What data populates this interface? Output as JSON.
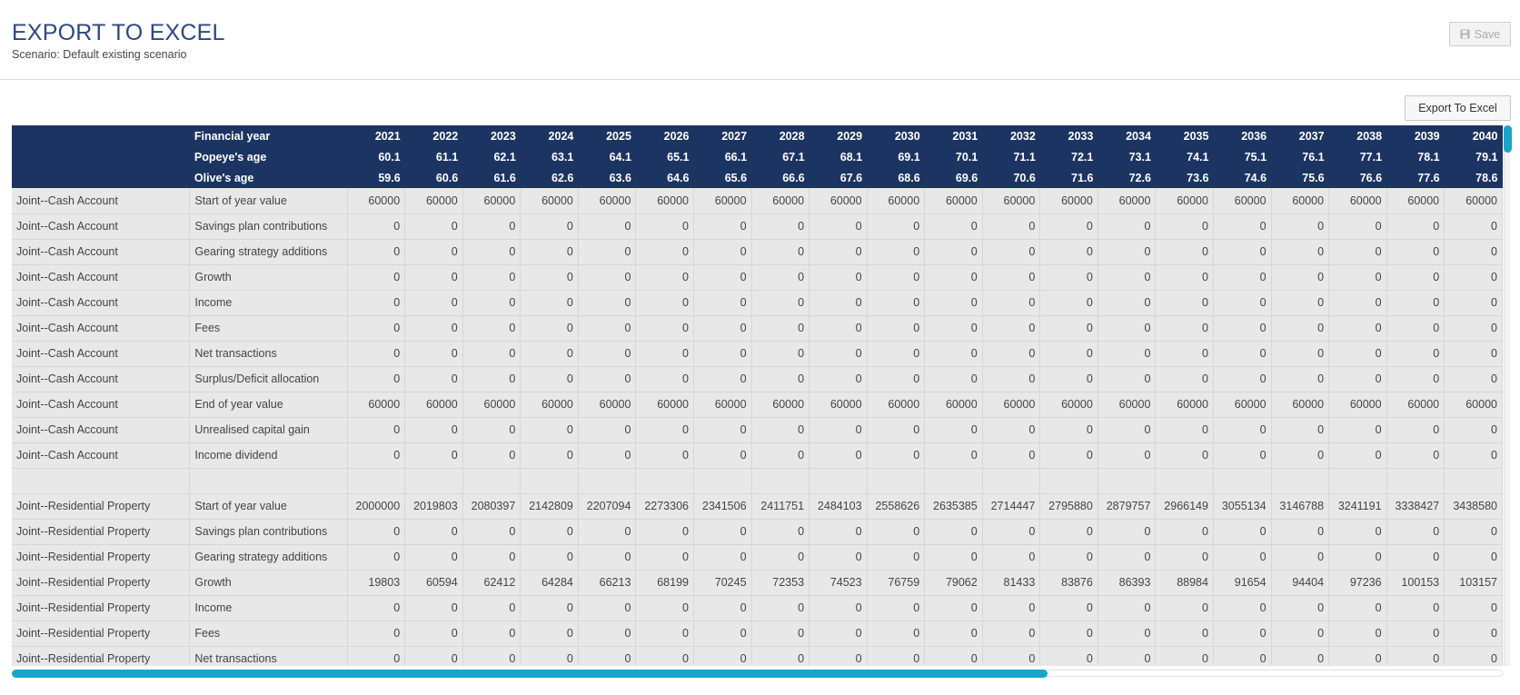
{
  "header": {
    "title": "EXPORT TO EXCEL",
    "scenario": "Scenario: Default existing scenario",
    "save_label": "Save",
    "save_icon": "floppy-disk-icon"
  },
  "toolbar": {
    "export_label": "Export To Excel"
  },
  "colors": {
    "header_bg": "#1c3461",
    "accent": "#1ba4c8",
    "title": "#2a4a7f",
    "cell_bg": "#e8e8e8"
  },
  "table": {
    "header_rows": [
      {
        "label": "Financial year",
        "values": [
          "2021",
          "2022",
          "2023",
          "2024",
          "2025",
          "2026",
          "2027",
          "2028",
          "2029",
          "2030",
          "2031",
          "2032",
          "2033",
          "2034",
          "2035",
          "2036",
          "2037",
          "2038",
          "2039",
          "2040"
        ]
      },
      {
        "label": "Popeye's age",
        "values": [
          "60.1",
          "61.1",
          "62.1",
          "63.1",
          "64.1",
          "65.1",
          "66.1",
          "67.1",
          "68.1",
          "69.1",
          "70.1",
          "71.1",
          "72.1",
          "73.1",
          "74.1",
          "75.1",
          "76.1",
          "77.1",
          "78.1",
          "79.1"
        ]
      },
      {
        "label": "Olive's age",
        "values": [
          "59.6",
          "60.6",
          "61.6",
          "62.6",
          "63.6",
          "64.6",
          "65.6",
          "66.6",
          "67.6",
          "68.6",
          "69.6",
          "70.6",
          "71.6",
          "72.6",
          "73.6",
          "74.6",
          "75.6",
          "76.6",
          "77.6",
          "78.6"
        ]
      }
    ],
    "rows": [
      {
        "account": "Joint--Cash Account",
        "item": "Start of year value",
        "values": [
          "60000",
          "60000",
          "60000",
          "60000",
          "60000",
          "60000",
          "60000",
          "60000",
          "60000",
          "60000",
          "60000",
          "60000",
          "60000",
          "60000",
          "60000",
          "60000",
          "60000",
          "60000",
          "60000",
          "60000"
        ]
      },
      {
        "account": "Joint--Cash Account",
        "item": "Savings plan contributions",
        "values": [
          "0",
          "0",
          "0",
          "0",
          "0",
          "0",
          "0",
          "0",
          "0",
          "0",
          "0",
          "0",
          "0",
          "0",
          "0",
          "0",
          "0",
          "0",
          "0",
          "0"
        ]
      },
      {
        "account": "Joint--Cash Account",
        "item": "Gearing strategy additions",
        "values": [
          "0",
          "0",
          "0",
          "0",
          "0",
          "0",
          "0",
          "0",
          "0",
          "0",
          "0",
          "0",
          "0",
          "0",
          "0",
          "0",
          "0",
          "0",
          "0",
          "0"
        ]
      },
      {
        "account": "Joint--Cash Account",
        "item": "Growth",
        "values": [
          "0",
          "0",
          "0",
          "0",
          "0",
          "0",
          "0",
          "0",
          "0",
          "0",
          "0",
          "0",
          "0",
          "0",
          "0",
          "0",
          "0",
          "0",
          "0",
          "0"
        ]
      },
      {
        "account": "Joint--Cash Account",
        "item": "Income",
        "values": [
          "0",
          "0",
          "0",
          "0",
          "0",
          "0",
          "0",
          "0",
          "0",
          "0",
          "0",
          "0",
          "0",
          "0",
          "0",
          "0",
          "0",
          "0",
          "0",
          "0"
        ]
      },
      {
        "account": "Joint--Cash Account",
        "item": "Fees",
        "values": [
          "0",
          "0",
          "0",
          "0",
          "0",
          "0",
          "0",
          "0",
          "0",
          "0",
          "0",
          "0",
          "0",
          "0",
          "0",
          "0",
          "0",
          "0",
          "0",
          "0"
        ]
      },
      {
        "account": "Joint--Cash Account",
        "item": "Net transactions",
        "values": [
          "0",
          "0",
          "0",
          "0",
          "0",
          "0",
          "0",
          "0",
          "0",
          "0",
          "0",
          "0",
          "0",
          "0",
          "0",
          "0",
          "0",
          "0",
          "0",
          "0"
        ]
      },
      {
        "account": "Joint--Cash Account",
        "item": "Surplus/Deficit allocation",
        "values": [
          "0",
          "0",
          "0",
          "0",
          "0",
          "0",
          "0",
          "0",
          "0",
          "0",
          "0",
          "0",
          "0",
          "0",
          "0",
          "0",
          "0",
          "0",
          "0",
          "0"
        ]
      },
      {
        "account": "Joint--Cash Account",
        "item": "End of year value",
        "values": [
          "60000",
          "60000",
          "60000",
          "60000",
          "60000",
          "60000",
          "60000",
          "60000",
          "60000",
          "60000",
          "60000",
          "60000",
          "60000",
          "60000",
          "60000",
          "60000",
          "60000",
          "60000",
          "60000",
          "60000"
        ]
      },
      {
        "account": "Joint--Cash Account",
        "item": "Unrealised capital gain",
        "values": [
          "0",
          "0",
          "0",
          "0",
          "0",
          "0",
          "0",
          "0",
          "0",
          "0",
          "0",
          "0",
          "0",
          "0",
          "0",
          "0",
          "0",
          "0",
          "0",
          "0"
        ]
      },
      {
        "account": "Joint--Cash Account",
        "item": "Income dividend",
        "values": [
          "0",
          "0",
          "0",
          "0",
          "0",
          "0",
          "0",
          "0",
          "0",
          "0",
          "0",
          "0",
          "0",
          "0",
          "0",
          "0",
          "0",
          "0",
          "0",
          "0"
        ]
      },
      {
        "spacer": true
      },
      {
        "account": "Joint--Residential Property",
        "item": "Start of year value",
        "values": [
          "2000000",
          "2019803",
          "2080397",
          "2142809",
          "2207094",
          "2273306",
          "2341506",
          "2411751",
          "2484103",
          "2558626",
          "2635385",
          "2714447",
          "2795880",
          "2879757",
          "2966149",
          "3055134",
          "3146788",
          "3241191",
          "3338427",
          "3438580"
        ]
      },
      {
        "account": "Joint--Residential Property",
        "item": "Savings plan contributions",
        "values": [
          "0",
          "0",
          "0",
          "0",
          "0",
          "0",
          "0",
          "0",
          "0",
          "0",
          "0",
          "0",
          "0",
          "0",
          "0",
          "0",
          "0",
          "0",
          "0",
          "0"
        ]
      },
      {
        "account": "Joint--Residential Property",
        "item": "Gearing strategy additions",
        "values": [
          "0",
          "0",
          "0",
          "0",
          "0",
          "0",
          "0",
          "0",
          "0",
          "0",
          "0",
          "0",
          "0",
          "0",
          "0",
          "0",
          "0",
          "0",
          "0",
          "0"
        ]
      },
      {
        "account": "Joint--Residential Property",
        "item": "Growth",
        "values": [
          "19803",
          "60594",
          "62412",
          "64284",
          "66213",
          "68199",
          "70245",
          "72353",
          "74523",
          "76759",
          "79062",
          "81433",
          "83876",
          "86393",
          "88984",
          "91654",
          "94404",
          "97236",
          "100153",
          "103157"
        ]
      },
      {
        "account": "Joint--Residential Property",
        "item": "Income",
        "values": [
          "0",
          "0",
          "0",
          "0",
          "0",
          "0",
          "0",
          "0",
          "0",
          "0",
          "0",
          "0",
          "0",
          "0",
          "0",
          "0",
          "0",
          "0",
          "0",
          "0"
        ]
      },
      {
        "account": "Joint--Residential Property",
        "item": "Fees",
        "values": [
          "0",
          "0",
          "0",
          "0",
          "0",
          "0",
          "0",
          "0",
          "0",
          "0",
          "0",
          "0",
          "0",
          "0",
          "0",
          "0",
          "0",
          "0",
          "0",
          "0"
        ]
      },
      {
        "account": "Joint--Residential Property",
        "item": "Net transactions",
        "values": [
          "0",
          "0",
          "0",
          "0",
          "0",
          "0",
          "0",
          "0",
          "0",
          "0",
          "0",
          "0",
          "0",
          "0",
          "0",
          "0",
          "0",
          "0",
          "0",
          "0"
        ]
      }
    ]
  }
}
